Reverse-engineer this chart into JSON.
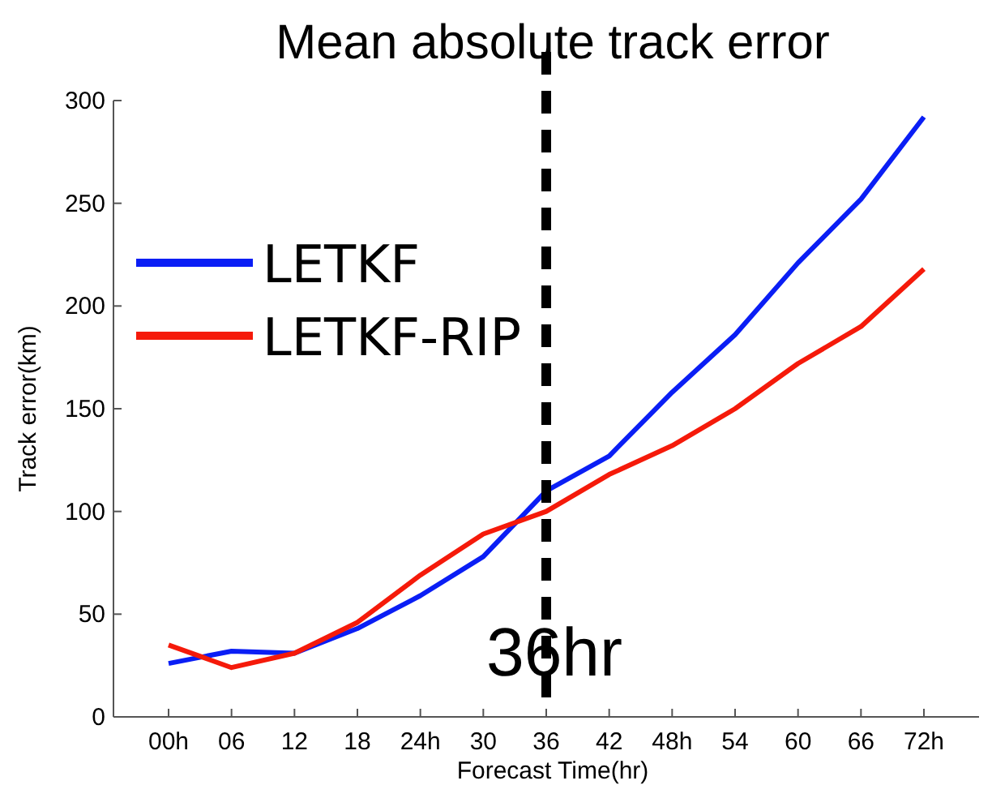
{
  "chart_data": {
    "type": "line",
    "title": "Mean absolute track error",
    "xlabel": "Forecast Time(hr)",
    "ylabel": "Track error(km)",
    "categories": [
      "00h",
      "06",
      "12",
      "18",
      "24h",
      "30",
      "36",
      "42",
      "48h",
      "54",
      "60",
      "66",
      "72h"
    ],
    "series": [
      {
        "name": "LETKF",
        "color": "#0a1ef5",
        "values": [
          26,
          32,
          31,
          43,
          59,
          78,
          110,
          127,
          158,
          186,
          221,
          252,
          292
        ]
      },
      {
        "name": "LETKF-RIP",
        "color": "#f51a0a",
        "values": [
          35,
          24,
          31,
          46,
          69,
          89,
          100,
          118,
          132,
          150,
          172,
          190,
          218
        ]
      }
    ],
    "ylim": [
      0,
      300
    ],
    "yticks": [
      0,
      50,
      100,
      150,
      200,
      250,
      300
    ],
    "grid": false,
    "legend": "top left",
    "line_style": "solid",
    "marker": "none",
    "ref_lines": [
      {
        "axis": "x",
        "value": "36",
        "label": "36hr",
        "color": "#000000",
        "line_style": "dashed"
      }
    ]
  }
}
